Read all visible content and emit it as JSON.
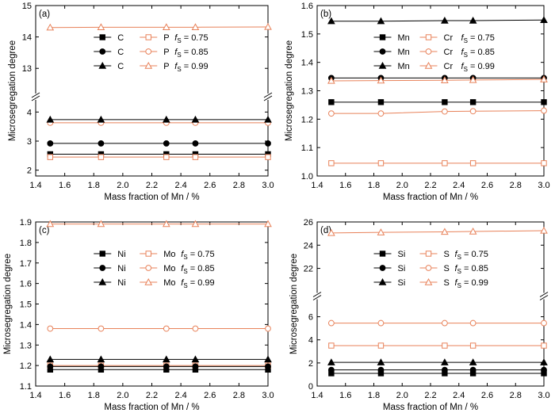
{
  "colors": {
    "black_series": "#000000",
    "orange_series": "#e8825a"
  },
  "chart_data": [
    {
      "type": "line",
      "panel_label": "(a)",
      "xlabel": "Mass fraction of Mn / %",
      "ylabel": "Microsegregation degree",
      "xlim": [
        1.4,
        3.0
      ],
      "xticks": [
        1.4,
        1.6,
        1.8,
        2.0,
        2.2,
        2.4,
        2.6,
        2.8,
        3.0
      ],
      "x": [
        1.5,
        1.85,
        2.3,
        2.5,
        3.0
      ],
      "broken_axis": true,
      "y_lower_range": [
        1.8,
        4.2
      ],
      "y_lower_ticks": [
        2,
        3,
        4
      ],
      "y_upper_range": [
        12.4,
        15
      ],
      "y_upper_ticks": [
        13,
        14,
        15
      ],
      "series": [
        {
          "name": "C",
          "element": "C",
          "fs": 0.75,
          "marker": "square",
          "filled": true,
          "color": "#000000",
          "values": [
            2.55,
            2.55,
            2.55,
            2.55,
            2.55
          ]
        },
        {
          "name": "P",
          "element": "P",
          "fs": 0.75,
          "marker": "square",
          "filled": false,
          "color": "#e8825a",
          "values": [
            2.45,
            2.45,
            2.45,
            2.45,
            2.45
          ]
        },
        {
          "name": "C",
          "element": "C",
          "fs": 0.85,
          "marker": "circle",
          "filled": true,
          "color": "#000000",
          "values": [
            2.92,
            2.92,
            2.92,
            2.92,
            2.92
          ]
        },
        {
          "name": "P",
          "element": "P",
          "fs": 0.85,
          "marker": "circle",
          "filled": false,
          "color": "#e8825a",
          "values": [
            3.63,
            3.63,
            3.63,
            3.63,
            3.63
          ]
        },
        {
          "name": "C",
          "element": "C",
          "fs": 0.99,
          "marker": "triangle",
          "filled": true,
          "color": "#000000",
          "values": [
            3.74,
            3.74,
            3.74,
            3.74,
            3.74
          ]
        },
        {
          "name": "P",
          "element": "P",
          "fs": 0.99,
          "marker": "triangle",
          "filled": false,
          "color": "#e8825a",
          "values": [
            14.3,
            14.31,
            14.31,
            14.31,
            14.32
          ]
        }
      ],
      "legend": [
        {
          "pair": [
            "C",
            "P"
          ],
          "fs_value": "0.75",
          "marker": "square"
        },
        {
          "pair": [
            "C",
            "P"
          ],
          "fs_value": "0.85",
          "marker": "circle"
        },
        {
          "pair": [
            "C",
            "P"
          ],
          "fs_value": "0.99",
          "marker": "triangle"
        }
      ],
      "legend_placement": "top-center"
    },
    {
      "type": "line",
      "panel_label": "(b)",
      "xlabel": "Mass fraction of Mn / %",
      "ylabel": "Microsegregation degree",
      "xlim": [
        1.4,
        3.0
      ],
      "xticks": [
        1.4,
        1.6,
        1.8,
        2.0,
        2.2,
        2.4,
        2.6,
        2.8,
        3.0
      ],
      "x": [
        1.5,
        1.85,
        2.3,
        2.5,
        3.0
      ],
      "broken_axis": false,
      "ylim": [
        1.0,
        1.6
      ],
      "yticks": [
        1.0,
        1.1,
        1.2,
        1.3,
        1.4,
        1.5,
        1.6
      ],
      "series": [
        {
          "name": "Mn",
          "element": "Mn",
          "fs": 0.75,
          "marker": "square",
          "filled": true,
          "color": "#000000",
          "values": [
            1.26,
            1.26,
            1.26,
            1.26,
            1.26
          ]
        },
        {
          "name": "Cr",
          "element": "Cr",
          "fs": 0.75,
          "marker": "square",
          "filled": false,
          "color": "#e8825a",
          "values": [
            1.045,
            1.045,
            1.045,
            1.045,
            1.045
          ]
        },
        {
          "name": "Mn",
          "element": "Mn",
          "fs": 0.85,
          "marker": "circle",
          "filled": true,
          "color": "#000000",
          "values": [
            1.345,
            1.345,
            1.345,
            1.345,
            1.345
          ]
        },
        {
          "name": "Cr",
          "element": "Cr",
          "fs": 0.85,
          "marker": "circle",
          "filled": false,
          "color": "#e8825a",
          "values": [
            1.22,
            1.22,
            1.227,
            1.228,
            1.23
          ]
        },
        {
          "name": "Mn",
          "element": "Mn",
          "fs": 0.99,
          "marker": "triangle",
          "filled": true,
          "color": "#000000",
          "values": [
            1.545,
            1.545,
            1.547,
            1.547,
            1.549
          ]
        },
        {
          "name": "Cr",
          "element": "Cr",
          "fs": 0.99,
          "marker": "triangle",
          "filled": false,
          "color": "#e8825a",
          "values": [
            1.335,
            1.336,
            1.337,
            1.338,
            1.34
          ]
        }
      ],
      "legend": [
        {
          "pair": [
            "Mn",
            "Cr"
          ],
          "fs_value": "0.75",
          "marker": "square"
        },
        {
          "pair": [
            "Mn",
            "Cr"
          ],
          "fs_value": "0.85",
          "marker": "circle"
        },
        {
          "pair": [
            "Mn",
            "Cr"
          ],
          "fs_value": "0.99",
          "marker": "triangle"
        }
      ],
      "legend_placement": "top-center"
    },
    {
      "type": "line",
      "panel_label": "(c)",
      "xlabel": "Mass fraction of Mn / %",
      "ylabel": "Microsegregation degree",
      "xlim": [
        1.4,
        3.0
      ],
      "xticks": [
        1.4,
        1.6,
        1.8,
        2.0,
        2.2,
        2.4,
        2.6,
        2.8,
        3.0
      ],
      "x": [
        1.5,
        1.85,
        2.3,
        2.5,
        3.0
      ],
      "broken_axis": false,
      "ylim": [
        1.1,
        1.9
      ],
      "yticks": [
        1.1,
        1.2,
        1.3,
        1.4,
        1.5,
        1.6,
        1.7,
        1.8,
        1.9
      ],
      "series": [
        {
          "name": "Ni",
          "element": "Ni",
          "fs": 0.75,
          "marker": "square",
          "filled": true,
          "color": "#000000",
          "values": [
            1.18,
            1.18,
            1.18,
            1.18,
            1.18
          ]
        },
        {
          "name": "Mo",
          "element": "Mo",
          "fs": 0.75,
          "marker": "square",
          "filled": false,
          "color": "#e8825a",
          "values": [
            1.2,
            1.2,
            1.2,
            1.2,
            1.2
          ]
        },
        {
          "name": "Ni",
          "element": "Ni",
          "fs": 0.85,
          "marker": "circle",
          "filled": true,
          "color": "#000000",
          "values": [
            1.195,
            1.195,
            1.195,
            1.195,
            1.195
          ]
        },
        {
          "name": "Mo",
          "element": "Mo",
          "fs": 0.85,
          "marker": "circle",
          "filled": false,
          "color": "#e8825a",
          "values": [
            1.38,
            1.38,
            1.38,
            1.38,
            1.38
          ]
        },
        {
          "name": "Ni",
          "element": "Ni",
          "fs": 0.99,
          "marker": "triangle",
          "filled": true,
          "color": "#000000",
          "values": [
            1.23,
            1.23,
            1.23,
            1.23,
            1.23
          ]
        },
        {
          "name": "Mo",
          "element": "Mo",
          "fs": 0.99,
          "marker": "triangle",
          "filled": false,
          "color": "#e8825a",
          "values": [
            1.89,
            1.89,
            1.89,
            1.89,
            1.89
          ]
        }
      ],
      "legend": [
        {
          "pair": [
            "Ni",
            "Mo"
          ],
          "fs_value": "0.75",
          "marker": "square"
        },
        {
          "pair": [
            "Ni",
            "Mo"
          ],
          "fs_value": "0.85",
          "marker": "circle"
        },
        {
          "pair": [
            "Ni",
            "Mo"
          ],
          "fs_value": "0.99",
          "marker": "triangle"
        }
      ],
      "legend_placement": "top-center"
    },
    {
      "type": "line",
      "panel_label": "(d)",
      "xlabel": "Mass fraction of Mn / %",
      "ylabel": "Microsegregation degree",
      "xlim": [
        1.4,
        3.0
      ],
      "xticks": [
        1.4,
        1.6,
        1.8,
        2.0,
        2.2,
        2.4,
        2.6,
        2.8,
        3.0
      ],
      "x": [
        1.5,
        1.85,
        2.3,
        2.5,
        3.0
      ],
      "broken_axis": true,
      "y_lower_range": [
        0,
        7
      ],
      "y_lower_ticks": [
        0,
        2,
        4,
        6
      ],
      "y_upper_range": [
        20.4,
        26
      ],
      "y_upper_ticks": [
        22,
        24,
        26
      ],
      "series": [
        {
          "name": "Si",
          "element": "Si",
          "fs": 0.75,
          "marker": "square",
          "filled": true,
          "color": "#000000",
          "values": [
            1.1,
            1.1,
            1.1,
            1.1,
            1.1
          ]
        },
        {
          "name": "S",
          "element": "S",
          "fs": 0.75,
          "marker": "square",
          "filled": false,
          "color": "#e8825a",
          "values": [
            3.5,
            3.5,
            3.5,
            3.5,
            3.5
          ]
        },
        {
          "name": "Si",
          "element": "Si",
          "fs": 0.85,
          "marker": "circle",
          "filled": true,
          "color": "#000000",
          "values": [
            1.4,
            1.4,
            1.4,
            1.4,
            1.4
          ]
        },
        {
          "name": "S",
          "element": "S",
          "fs": 0.85,
          "marker": "circle",
          "filled": false,
          "color": "#e8825a",
          "values": [
            5.45,
            5.45,
            5.45,
            5.45,
            5.45
          ]
        },
        {
          "name": "Si",
          "element": "Si",
          "fs": 0.99,
          "marker": "triangle",
          "filled": true,
          "color": "#000000",
          "values": [
            2.05,
            2.05,
            2.05,
            2.05,
            2.05
          ]
        },
        {
          "name": "S",
          "element": "S",
          "fs": 0.99,
          "marker": "triangle",
          "filled": false,
          "color": "#e8825a",
          "values": [
            25.05,
            25.1,
            25.15,
            25.18,
            25.25
          ]
        }
      ],
      "legend": [
        {
          "pair": [
            "Si",
            "S"
          ],
          "fs_value": "0.75",
          "marker": "square"
        },
        {
          "pair": [
            "Si",
            "S"
          ],
          "fs_value": "0.85",
          "marker": "circle"
        },
        {
          "pair": [
            "Si",
            "S"
          ],
          "fs_value": "0.99",
          "marker": "triangle"
        }
      ],
      "legend_placement": "top-center"
    }
  ]
}
